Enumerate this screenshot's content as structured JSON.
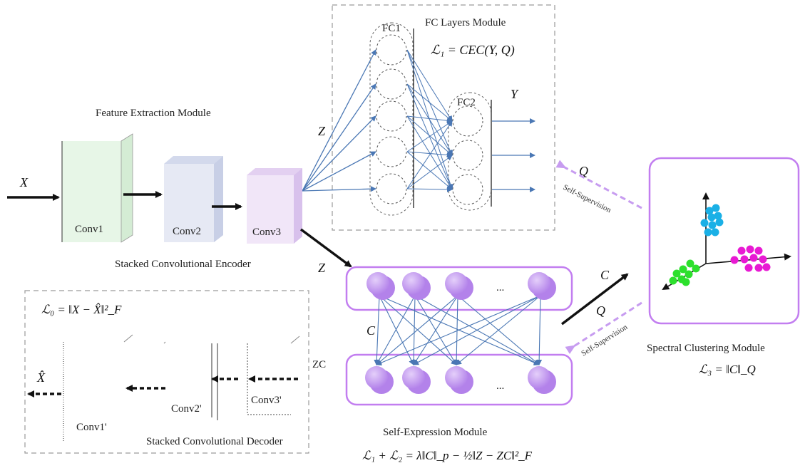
{
  "modules": {
    "fc_layers": {
      "title": "FC Layers Module",
      "formula": "ℒ₁ = CEC(Y, Q)",
      "fc1_label": "FC1",
      "fc2_label": "FC2",
      "output_label": "Y",
      "input_label": "Z"
    },
    "feature_extraction": {
      "title": "Feature Extraction Module",
      "input_label": "X",
      "layers": [
        "Conv1",
        "Conv2",
        "Conv3"
      ],
      "caption": "Stacked Convolutional Encoder"
    },
    "decoder": {
      "formula": "ℒ₀ = ‖X − X̂‖²_F",
      "output_label": "X̂",
      "layers": [
        "Conv1'",
        "Conv2'",
        "Conv3'"
      ],
      "caption": "Stacked Convolutional Decoder",
      "input_label": "ZC"
    },
    "self_expression": {
      "title": "Self-Expression Module",
      "formula": "ℒ₁ + ℒ₂ = λ‖C‖_p − ½‖Z − ZC‖²_F",
      "input_label": "Z",
      "coef_label": "C",
      "ellipsis": "..."
    },
    "spectral": {
      "title": "Spectral Clustering Module",
      "formula": "ℒ₃ = ‖C‖_Q",
      "c_label": "C",
      "q_label_top": "Q",
      "q_label_bottom": "Q",
      "supervision_top": "Self-Supervision",
      "supervision_bottom": "Self-Supervision"
    }
  },
  "colors": {
    "fc_arrow": "#4a77b4",
    "purple": "#c27ef0",
    "node_fill": "#c9a4f4",
    "cluster_cyan": "#1ab0e6",
    "cluster_magenta": "#e81ad3",
    "cluster_green": "#2ce02c",
    "dash_border": "#9a9a9a",
    "supervision_arrow": "#c79cf0"
  }
}
